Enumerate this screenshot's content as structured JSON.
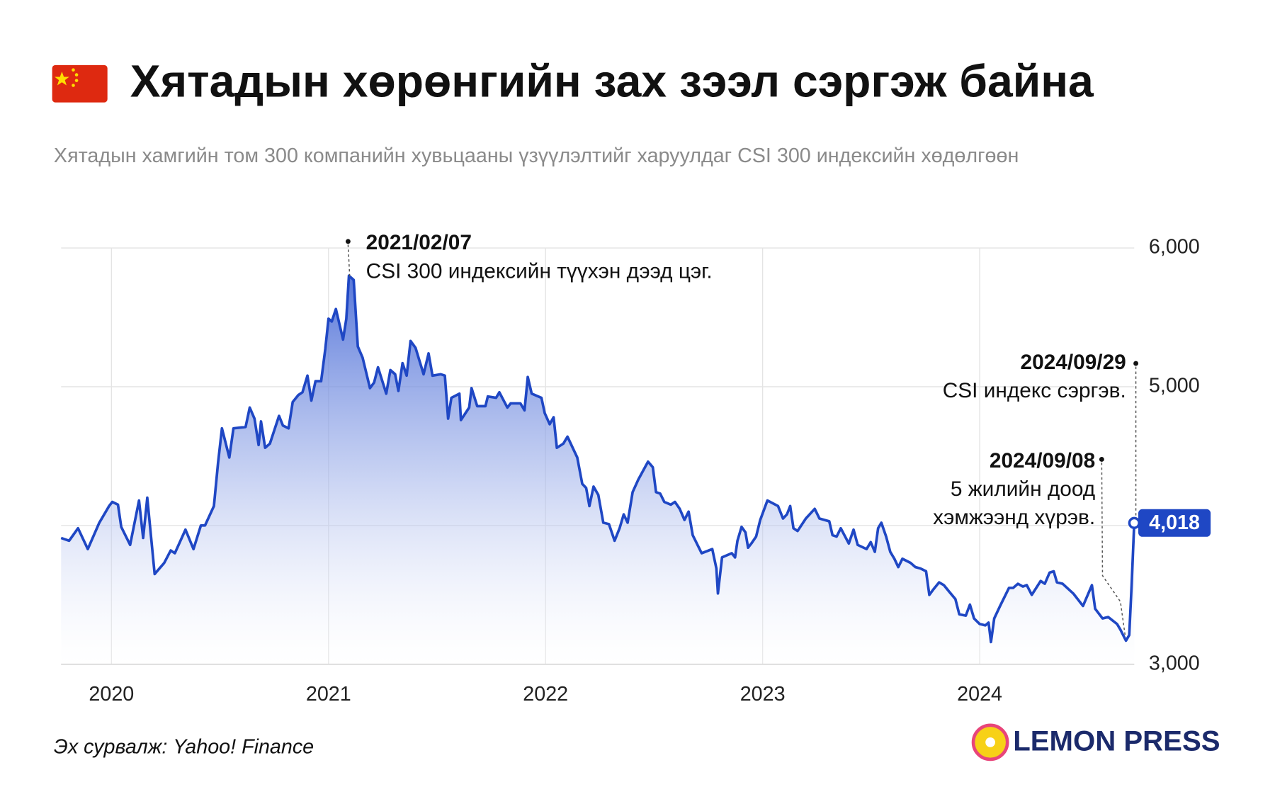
{
  "logo": "LEMON PRESS",
  "chart_data": {
    "type": "line",
    "title": "Хятадын хөрөнгийн зах зээл сэргэж байна",
    "subtitle": "Хятадын хамгийн том 300 компанийн хувьцааны үзүүлэлтийг харуулдаг CSI 300 индексийн хөдөлгөөн",
    "source": "Эх сурвалж: Yahoo! Finance",
    "color": "#1f47c4",
    "grid": true,
    "xlim": [
      2019.768,
      2024.712
    ],
    "xticks": [
      2020,
      2021,
      2022,
      2023,
      2024
    ],
    "ylim": [
      3000,
      6000
    ],
    "yticks": [
      {
        "value": 3000,
        "label": "3,000"
      },
      {
        "value": 4000,
        "label": "4,000"
      },
      {
        "value": 5000,
        "label": "5,000"
      },
      {
        "value": 6000,
        "label": "6,000"
      }
    ],
    "x": [
      2019.768,
      2019.805,
      2019.846,
      2019.891,
      2019.944,
      2019.989,
      2020.004,
      2020.03,
      2020.045,
      2020.086,
      2020.127,
      2020.146,
      2020.165,
      2020.199,
      2020.243,
      2020.273,
      2020.292,
      2020.341,
      2020.378,
      2020.412,
      2020.431,
      2020.472,
      2020.491,
      2020.509,
      2020.543,
      2020.562,
      2020.618,
      2020.637,
      2020.659,
      2020.678,
      2020.689,
      2020.708,
      2020.73,
      2020.772,
      2020.79,
      2020.816,
      2020.835,
      2020.861,
      2020.88,
      2020.903,
      2020.921,
      2020.94,
      2020.966,
      2020.985,
      2021.0,
      2021.015,
      2021.034,
      2021.052,
      2021.067,
      2021.082,
      2021.094,
      2021.116,
      2021.135,
      2021.157,
      2021.191,
      2021.21,
      2021.228,
      2021.266,
      2021.285,
      2021.307,
      2021.322,
      2021.341,
      2021.36,
      2021.378,
      2021.401,
      2021.438,
      2021.461,
      2021.479,
      2021.517,
      2021.536,
      2021.551,
      2021.566,
      2021.603,
      2021.61,
      2021.648,
      2021.659,
      2021.685,
      2021.723,
      2021.734,
      2021.772,
      2021.787,
      2021.824,
      2021.839,
      2021.884,
      2021.903,
      2021.918,
      2021.936,
      2021.981,
      2021.996,
      2022.019,
      2022.037,
      2022.052,
      2022.082,
      2022.101,
      2022.146,
      2022.169,
      2022.187,
      2022.202,
      2022.221,
      2022.243,
      2022.266,
      2022.292,
      2022.318,
      2022.341,
      2022.36,
      2022.378,
      2022.401,
      2022.427,
      2022.472,
      2022.494,
      2022.509,
      2022.528,
      2022.547,
      2022.577,
      2022.596,
      2022.618,
      2022.64,
      2022.659,
      2022.678,
      2022.697,
      2022.719,
      2022.768,
      2022.787,
      2022.794,
      2022.813,
      2022.858,
      2022.873,
      2022.884,
      2022.903,
      2022.921,
      2022.933,
      2022.948,
      2022.97,
      2022.989,
      2023.022,
      2023.071,
      2023.094,
      2023.112,
      2023.127,
      2023.142,
      2023.161,
      2023.199,
      2023.24,
      2023.262,
      2023.307,
      2023.322,
      2023.341,
      2023.36,
      2023.397,
      2023.419,
      2023.438,
      2023.479,
      2023.498,
      2023.517,
      2023.532,
      2023.547,
      2023.569,
      2023.588,
      2023.607,
      2023.625,
      2023.644,
      2023.682,
      2023.704,
      2023.727,
      2023.753,
      2023.768,
      2023.787,
      2023.813,
      2023.835,
      2023.861,
      2023.888,
      2023.906,
      2023.936,
      2023.955,
      2023.974,
      2024.0,
      2024.026,
      2024.041,
      2024.052,
      2024.067,
      2024.094,
      2024.135,
      2024.154,
      2024.176,
      2024.199,
      2024.217,
      2024.24,
      2024.281,
      2024.3,
      2024.322,
      2024.341,
      2024.356,
      2024.382,
      2024.431,
      2024.476,
      2024.517,
      2024.532,
      2024.566,
      2024.592,
      2024.633,
      2024.648,
      2024.674,
      2024.689,
      2024.7,
      2024.712
    ],
    "values": [
      3910,
      3890,
      3980,
      3830,
      4020,
      4140,
      4170,
      4150,
      3990,
      3860,
      4180,
      3910,
      4200,
      3650,
      3730,
      3820,
      3800,
      3970,
      3830,
      4000,
      4000,
      4140,
      4450,
      4700,
      4490,
      4700,
      4710,
      4850,
      4770,
      4580,
      4750,
      4560,
      4590,
      4790,
      4720,
      4700,
      4890,
      4940,
      4960,
      5080,
      4900,
      5040,
      5040,
      5270,
      5490,
      5470,
      5560,
      5440,
      5340,
      5490,
      5800,
      5770,
      5290,
      5210,
      4990,
      5030,
      5140,
      4950,
      5120,
      5090,
      4970,
      5170,
      5080,
      5330,
      5280,
      5090,
      5240,
      5080,
      5090,
      5080,
      4770,
      4920,
      4950,
      4760,
      4850,
      4990,
      4860,
      4860,
      4930,
      4920,
      4960,
      4850,
      4880,
      4880,
      4830,
      5070,
      4950,
      4920,
      4810,
      4730,
      4780,
      4560,
      4590,
      4640,
      4490,
      4300,
      4270,
      4140,
      4280,
      4220,
      4020,
      4010,
      3890,
      3980,
      4080,
      4020,
      4240,
      4330,
      4460,
      4420,
      4240,
      4230,
      4170,
      4150,
      4170,
      4120,
      4040,
      4100,
      3930,
      3870,
      3800,
      3830,
      3690,
      3510,
      3770,
      3800,
      3770,
      3890,
      3990,
      3950,
      3840,
      3870,
      3920,
      4040,
      4180,
      4140,
      4050,
      4080,
      4140,
      3980,
      3960,
      4050,
      4120,
      4050,
      4030,
      3930,
      3920,
      3980,
      3870,
      3970,
      3860,
      3830,
      3880,
      3810,
      3980,
      4020,
      3920,
      3810,
      3760,
      3700,
      3760,
      3730,
      3700,
      3690,
      3670,
      3500,
      3540,
      3590,
      3570,
      3520,
      3470,
      3360,
      3350,
      3430,
      3330,
      3290,
      3280,
      3300,
      3160,
      3330,
      3420,
      3550,
      3550,
      3580,
      3560,
      3570,
      3500,
      3600,
      3580,
      3660,
      3670,
      3590,
      3580,
      3510,
      3420,
      3570,
      3400,
      3330,
      3340,
      3290,
      3250,
      3170,
      3210,
      3570,
      4018
    ],
    "value_labels": [
      null,
      null,
      null,
      null,
      null,
      null,
      null,
      null,
      null,
      null,
      null,
      null,
      null,
      null,
      null,
      null,
      null,
      null,
      null,
      null,
      null,
      null,
      null,
      null,
      null,
      null,
      null,
      null,
      null,
      null,
      null,
      null,
      null,
      null,
      null,
      null,
      null,
      null,
      null,
      null,
      null,
      null,
      null,
      null,
      null,
      null,
      null,
      null,
      null,
      null,
      null,
      null,
      null,
      null,
      null,
      null,
      null,
      null,
      null,
      null,
      null,
      null,
      null,
      null,
      null,
      null,
      null,
      null,
      null,
      null,
      null,
      null,
      null,
      null,
      null,
      null,
      null,
      null,
      null,
      null,
      null,
      null,
      null,
      null,
      null,
      null,
      null,
      null,
      null,
      null,
      null,
      null,
      null,
      null,
      null,
      null,
      null,
      null,
      null,
      null,
      null,
      null,
      null,
      null,
      null,
      null,
      null,
      null,
      null,
      null,
      null,
      null,
      null,
      null,
      null,
      null,
      null,
      null,
      null,
      null,
      null,
      null,
      null,
      null,
      null,
      null,
      null,
      null,
      null,
      null,
      null,
      null,
      null,
      null,
      null,
      null,
      null,
      null,
      null,
      null,
      null,
      null,
      null,
      null,
      null,
      null,
      null,
      null,
      null,
      null,
      null,
      null,
      null,
      null,
      null,
      null,
      null,
      null,
      null,
      null,
      null,
      null,
      null,
      null,
      null,
      null,
      null,
      null,
      null,
      null,
      null,
      null,
      null,
      null,
      null,
      null,
      null,
      null,
      null,
      null,
      null,
      null,
      null,
      null,
      null,
      null,
      null,
      null,
      null,
      null,
      null,
      null,
      null,
      null,
      null,
      null,
      null,
      null,
      null,
      null,
      null,
      null,
      null,
      null,
      "4,018"
    ],
    "annotations": [
      {
        "date": "2021/02/07",
        "lines": [
          "CSI 300 индексийн түүхэн дээд цэг."
        ]
      },
      {
        "date": "2024/09/29",
        "lines": [
          "CSI индекс сэргэв."
        ]
      },
      {
        "date": "2024/09/08",
        "lines": [
          "5 жилийн доод",
          "хэмжээнд хүрэв."
        ]
      }
    ]
  }
}
